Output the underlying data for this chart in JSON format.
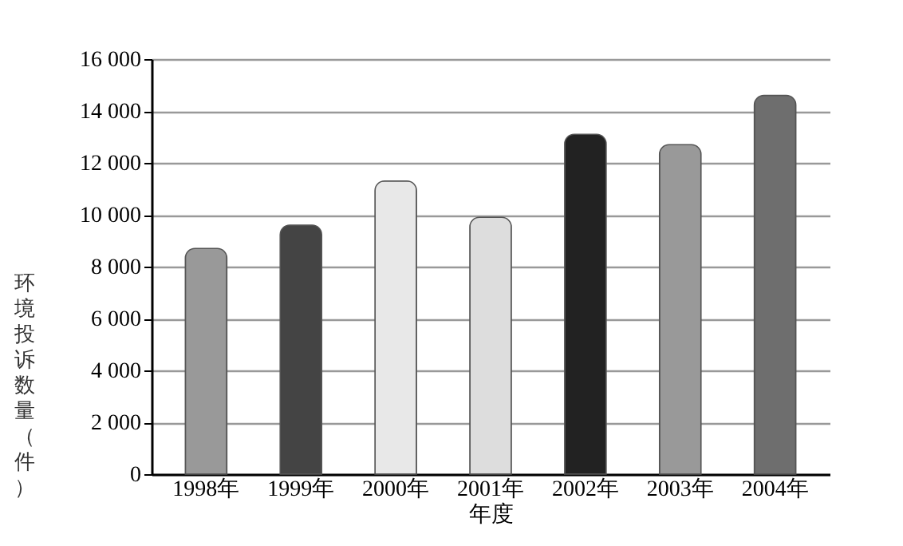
{
  "chart_data": {
    "type": "bar",
    "xlabel": "年度",
    "ylabel": "环境投诉数量（件）",
    "categories": [
      "1998年",
      "1999年",
      "2000年",
      "2001年",
      "2002年",
      "2003年",
      "2004年"
    ],
    "values": [
      8700,
      9600,
      11300,
      9900,
      13100,
      12700,
      14600
    ],
    "colors": [
      "#999999",
      "#444444",
      "#e8e8e8",
      "#dddddd",
      "#222222",
      "#999999",
      "#6e6e6e"
    ],
    "ylim": [
      0,
      16000
    ],
    "yticks": [
      0,
      {
        "value": 2000,
        "label": "2 000"
      },
      {
        "value": 4000,
        "label": "4 000"
      },
      {
        "value": 6000,
        "label": "6 000"
      },
      {
        "value": 8000,
        "label": "8 000"
      },
      {
        "value": 10000,
        "label": "10 000"
      },
      {
        "value": 12000,
        "label": "12 000"
      },
      {
        "value": 14000,
        "label": "14 000"
      },
      {
        "value": 16000,
        "label": "16 000"
      }
    ],
    "grid": "y"
  }
}
